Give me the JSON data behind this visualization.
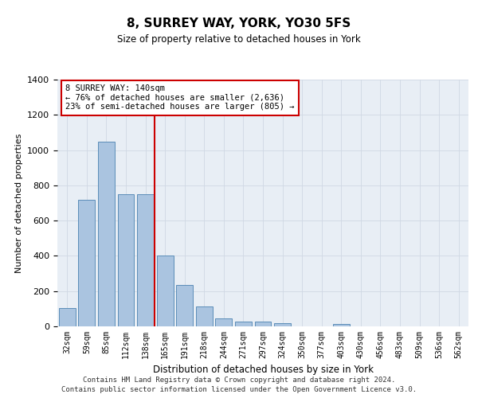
{
  "title": "8, SURREY WAY, YORK, YO30 5FS",
  "subtitle": "Size of property relative to detached houses in York",
  "xlabel": "Distribution of detached houses by size in York",
  "ylabel": "Number of detached properties",
  "categories": [
    "32sqm",
    "59sqm",
    "85sqm",
    "112sqm",
    "138sqm",
    "165sqm",
    "191sqm",
    "218sqm",
    "244sqm",
    "271sqm",
    "297sqm",
    "324sqm",
    "350sqm",
    "377sqm",
    "403sqm",
    "430sqm",
    "456sqm",
    "483sqm",
    "509sqm",
    "536sqm",
    "562sqm"
  ],
  "values": [
    105,
    720,
    1050,
    750,
    750,
    400,
    235,
    115,
    45,
    28,
    28,
    20,
    0,
    0,
    15,
    0,
    0,
    0,
    0,
    0,
    0
  ],
  "bar_color": "#aac4e0",
  "bar_edge_color": "#5b8db8",
  "vline_color": "#cc0000",
  "vline_pos": 4.45,
  "annotation_text": "8 SURREY WAY: 140sqm\n← 76% of detached houses are smaller (2,636)\n23% of semi-detached houses are larger (805) →",
  "annotation_box_color": "#ffffff",
  "annotation_box_edge": "#cc0000",
  "grid_color": "#d0d8e4",
  "background_color": "#e8eef5",
  "ylim": [
    0,
    1400
  ],
  "yticks": [
    0,
    200,
    400,
    600,
    800,
    1000,
    1200,
    1400
  ],
  "footer_line1": "Contains HM Land Registry data © Crown copyright and database right 2024.",
  "footer_line2": "Contains public sector information licensed under the Open Government Licence v3.0."
}
